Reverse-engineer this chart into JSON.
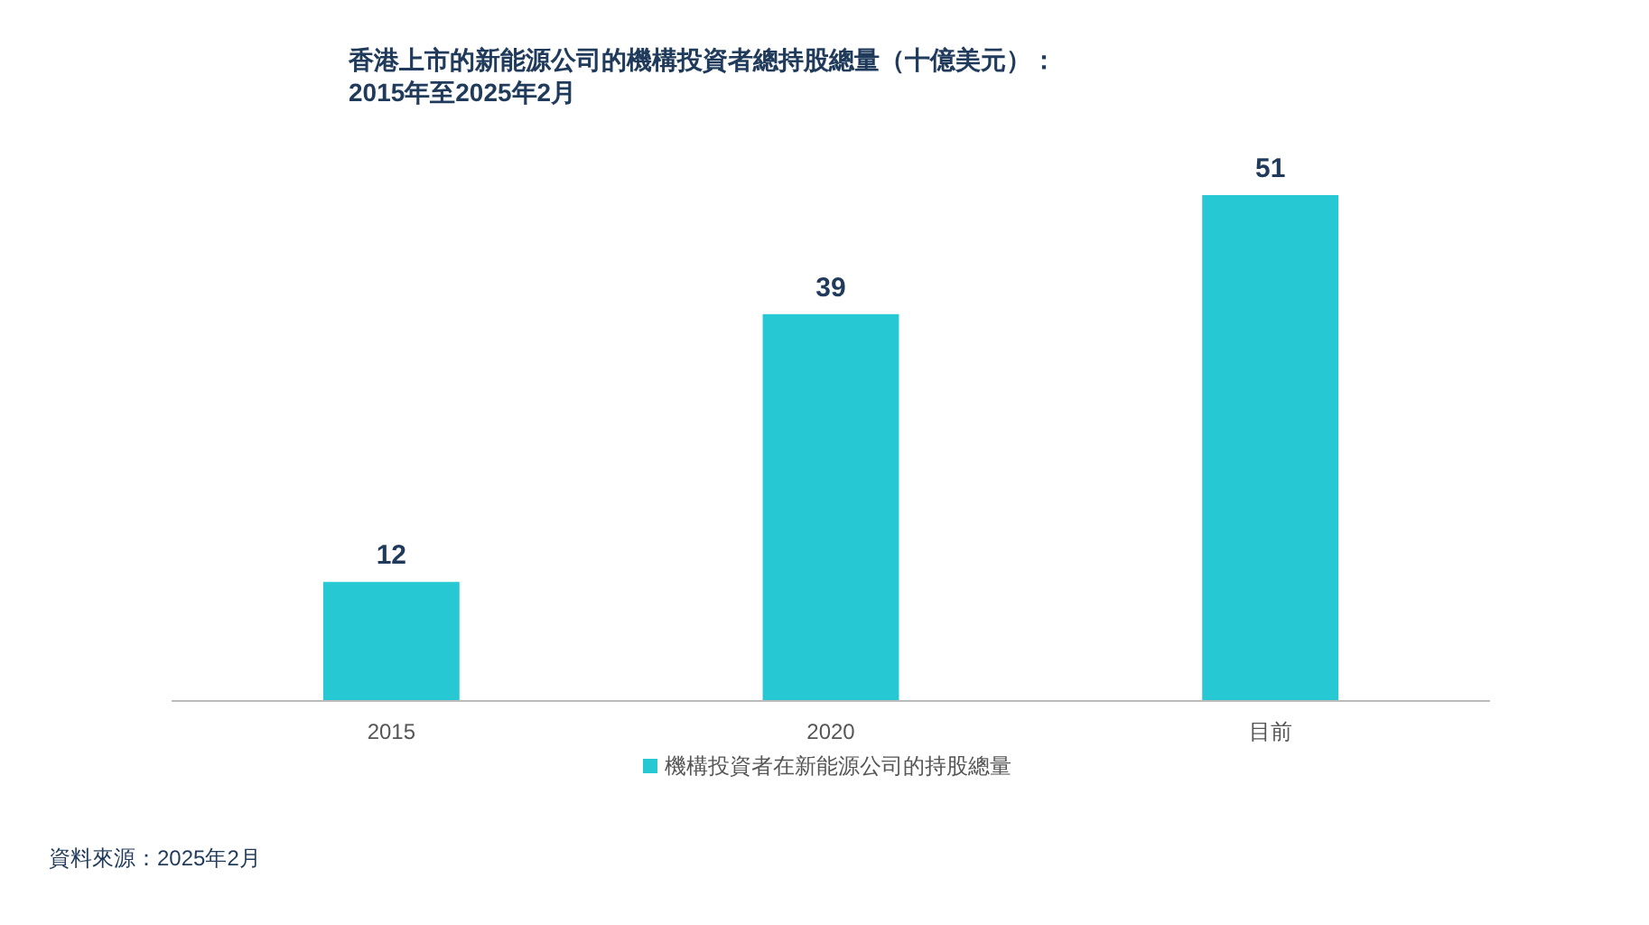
{
  "chart_data": {
    "type": "bar",
    "title": "香港上市的新能源公司的機構投資者總持股總量（十億美元）：",
    "subtitle": "2015年至2025年2月",
    "categories": [
      "2015",
      "2020",
      "目前"
    ],
    "series": [
      {
        "name": "機構投資者在新能源公司的持股總量",
        "color": "#26c9d3",
        "values": [
          12,
          39,
          51
        ]
      }
    ],
    "data_labels": true,
    "legend": "bottom",
    "grid": false,
    "annotations": [
      "資料來源：2025年2月"
    ]
  }
}
